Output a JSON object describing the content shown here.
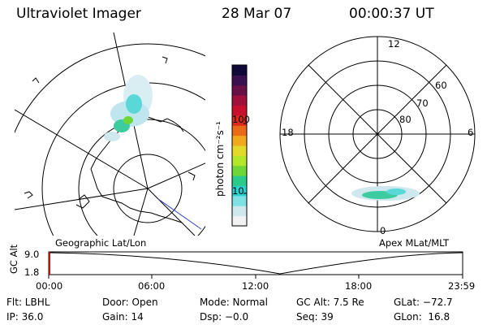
{
  "header": {
    "instrument": "Ultraviolet Imager",
    "date": "28 Mar 07",
    "time": "00:00:37 UT"
  },
  "geo_panel": {
    "label": "Geographic Lat/Lon"
  },
  "colorbar": {
    "label": "photon cm⁻²s⁻¹",
    "ticks": [
      "100",
      "10"
    ],
    "scale": "log",
    "colors": [
      "#f2f2f2",
      "#cfe8ee",
      "#7ee1e6",
      "#2ad3cf",
      "#2acb8a",
      "#6fd63a",
      "#b4e629",
      "#e3d92a",
      "#f2a81e",
      "#ea6a18",
      "#dd2a1e",
      "#c8102e",
      "#a0103a",
      "#6a1048",
      "#3a1050",
      "#100838"
    ]
  },
  "polar_panel": {
    "label": "Apex MLat/MLT",
    "mlt_labels": {
      "top": "12",
      "left": "18",
      "right": "6",
      "bottom": "0"
    },
    "lat_labels": [
      "60",
      "70",
      "80"
    ]
  },
  "alt_strip": {
    "axis_label": "GC Alt",
    "y_ticks": [
      "9.0",
      "1.8"
    ],
    "x_ticks": [
      "00:00",
      "06:00",
      "12:00",
      "18:00",
      "23:59"
    ]
  },
  "status": {
    "row1": {
      "flt": "Flt: LBHL",
      "door": "Door: Open",
      "mode": "Mode: Normal",
      "gcalt": "GC Alt: 7.5 Re",
      "glat": "GLat: −72.7"
    },
    "row2": {
      "ip": "IP: 36.0",
      "gain": "Gain: 14",
      "dsp": "Dsp:   −0.0",
      "seq": "Seq: 39",
      "glon": "GLon:  16.8"
    }
  }
}
